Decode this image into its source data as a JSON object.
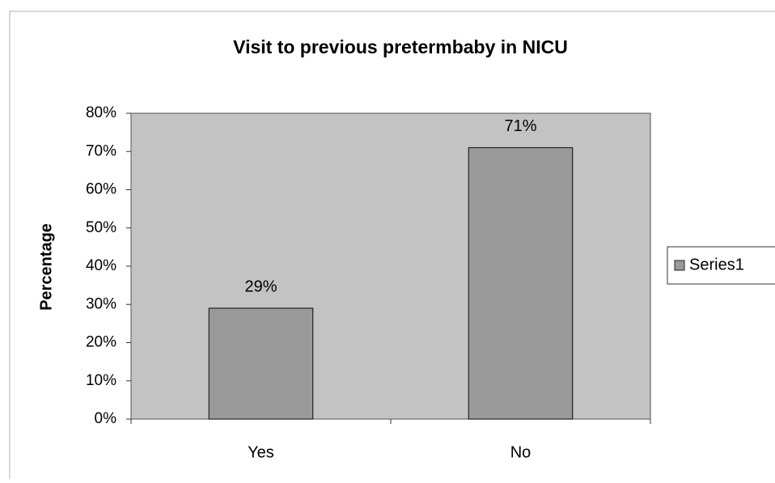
{
  "chart_data": {
    "type": "bar",
    "title": "Visit to previous pretermbaby in NICU",
    "ylabel": "Percentage",
    "categories": [
      "Yes",
      "No"
    ],
    "series": [
      {
        "name": "Series1",
        "color": "#9a9a9a",
        "values": [
          29,
          71
        ],
        "value_labels": [
          "29%",
          "71%"
        ]
      }
    ],
    "ylim": [
      0,
      80
    ],
    "yticks": [
      {
        "value": 0,
        "label": "0%"
      },
      {
        "value": 10,
        "label": "10%"
      },
      {
        "value": 20,
        "label": "20%"
      },
      {
        "value": 30,
        "label": "30%"
      },
      {
        "value": 40,
        "label": "40%"
      },
      {
        "value": 50,
        "label": "50%"
      },
      {
        "value": 60,
        "label": "60%"
      },
      {
        "value": 70,
        "label": "70%"
      },
      {
        "value": 80,
        "label": "80%"
      }
    ],
    "grid": false,
    "legend": "right"
  }
}
